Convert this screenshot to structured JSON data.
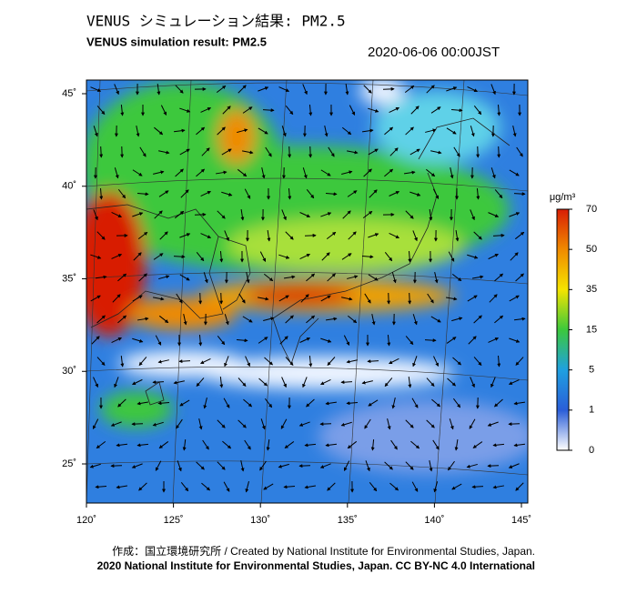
{
  "header": {
    "title": "VENUS シミュレーション結果: PM2.5",
    "subtitle": "VENUS simulation result: PM2.5",
    "datetime": "2020-06-06 00:00JST"
  },
  "map": {
    "lon_ticks": [
      {
        "value": 120,
        "label": "120˚"
      },
      {
        "value": 125,
        "label": "125˚"
      },
      {
        "value": 130,
        "label": "130˚"
      },
      {
        "value": 135,
        "label": "135˚"
      },
      {
        "value": 140,
        "label": "140˚"
      },
      {
        "value": 145,
        "label": "145˚"
      }
    ],
    "lat_ticks": [
      {
        "value": 45,
        "label": "45˚"
      },
      {
        "value": 40,
        "label": "40˚"
      },
      {
        "value": 35,
        "label": "35˚"
      },
      {
        "value": 30,
        "label": "30˚"
      },
      {
        "value": 25,
        "label": "25˚"
      }
    ]
  },
  "colorbar": {
    "unit": "μg/m³",
    "ticks": [
      70,
      50,
      35,
      15,
      5,
      1,
      0
    ],
    "colors": [
      "#d81e05",
      "#f08a00",
      "#f5e400",
      "#3cc83c",
      "#1fa0e0",
      "#2a5ed8",
      "#ffffff"
    ]
  },
  "footer": {
    "line1": "作成：国立環境研究所 / Created by National Institute for Environmental Studies, Japan.",
    "line2": "2020 National Institute for Environmental Studies, Japan. CC BY-NC 4.0 International"
  }
}
